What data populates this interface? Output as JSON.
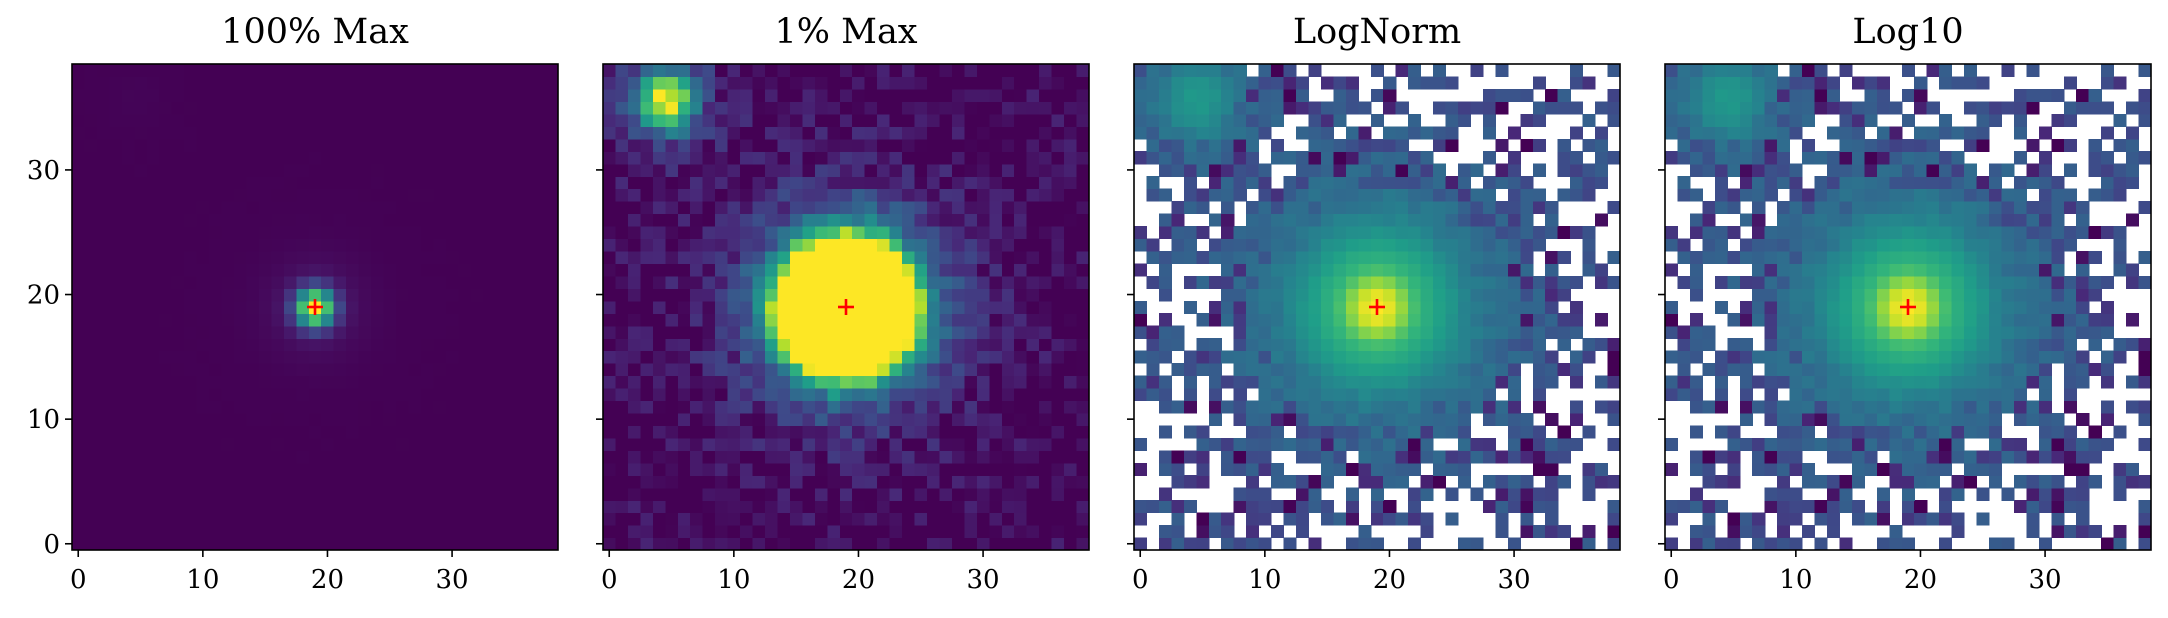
{
  "chart_data": [
    {
      "type": "heatmap",
      "title": "100% Max",
      "xlabel": "",
      "ylabel": "",
      "xlim": [
        -0.5,
        38.5
      ],
      "ylim": [
        -0.5,
        38.5
      ],
      "xticks": [
        "0",
        "10",
        "20",
        "30"
      ],
      "yticks": [
        "0",
        "10",
        "20",
        "30"
      ],
      "colormap": "viridis",
      "scale": "linear",
      "vmax_fraction": 1.0,
      "marker": {
        "symbol": "+",
        "x": 19,
        "y": 19,
        "color": "#ff0000"
      },
      "grid": false
    },
    {
      "type": "heatmap",
      "title": "1% Max",
      "xlabel": "",
      "ylabel": "",
      "xlim": [
        -0.5,
        38.5
      ],
      "ylim": [
        -0.5,
        38.5
      ],
      "xticks": [
        "0",
        "10",
        "20",
        "30"
      ],
      "yticks": [],
      "colormap": "viridis",
      "scale": "linear",
      "vmax_fraction": 0.01,
      "marker": {
        "symbol": "+",
        "x": 19,
        "y": 19,
        "color": "#ff0000"
      },
      "grid": false
    },
    {
      "type": "heatmap",
      "title": "LogNorm",
      "xlabel": "",
      "ylabel": "",
      "xlim": [
        -0.5,
        38.5
      ],
      "ylim": [
        -0.5,
        38.5
      ],
      "xticks": [
        "0",
        "10",
        "20",
        "30"
      ],
      "yticks": [],
      "colormap": "viridis",
      "scale": "log",
      "masked_color": "#ffffff",
      "marker": {
        "symbol": "+",
        "x": 19,
        "y": 19,
        "color": "#ff0000"
      },
      "grid": false
    },
    {
      "type": "heatmap",
      "title": "Log10",
      "xlabel": "",
      "ylabel": "",
      "xlim": [
        -0.5,
        38.5
      ],
      "ylim": [
        -0.5,
        38.5
      ],
      "xticks": [
        "0",
        "10",
        "20",
        "30"
      ],
      "yticks": [],
      "colormap": "viridis",
      "scale": "log10",
      "masked_color": "#ffffff",
      "marker": {
        "symbol": "+",
        "x": 19,
        "y": 19,
        "color": "#ff0000"
      },
      "grid": false
    }
  ]
}
